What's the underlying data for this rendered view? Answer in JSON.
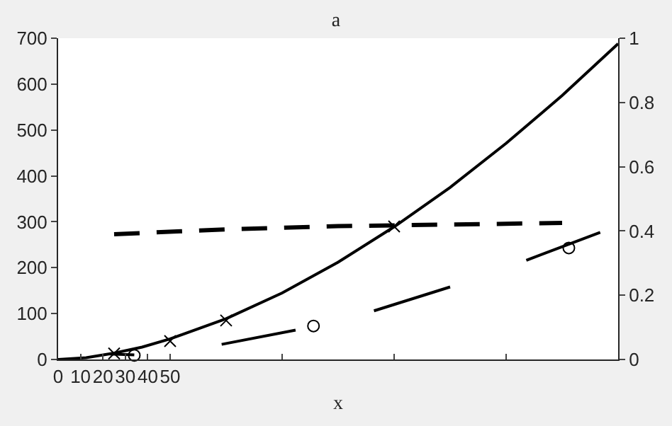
{
  "chart_data": {
    "type": "line",
    "title": "a",
    "xlabel": "x",
    "xlim": [
      0,
      250
    ],
    "xticks": [
      0,
      10,
      20,
      30,
      40,
      50,
      {
        "value": 100,
        "label": null
      },
      {
        "value": 150,
        "label": null
      },
      {
        "value": 200,
        "label": null
      }
    ],
    "ylim": [
      0,
      700
    ],
    "yticks": [
      0,
      100,
      200,
      300,
      400,
      500,
      600,
      700
    ],
    "y2lim": [
      0,
      1
    ],
    "y2ticks": [
      0,
      0.2,
      0.4,
      0.6,
      0.8,
      1
    ],
    "series": [
      {
        "color": "#000000",
        "line_style": "solid",
        "marker": "none",
        "x": [
          0,
          12.5,
          25,
          37.5,
          50,
          75,
          100,
          125,
          150,
          175,
          200,
          225,
          250
        ],
        "values": [
          0,
          4,
          14,
          27,
          45,
          89,
          145,
          212,
          289,
          375,
          471,
          575,
          688
        ]
      },
      {
        "type": "scatter",
        "color": "#000000",
        "marker": "cross",
        "x": [
          25,
          50,
          75,
          150
        ],
        "values": [
          13,
          40,
          85,
          290
        ]
      },
      {
        "color": "#000000",
        "line_style": "dashed",
        "marker": "none",
        "axis": "y2",
        "x": [
          25,
          75,
          125,
          175,
          225
        ],
        "values": [
          0.39,
          0.405,
          0.415,
          0.42,
          0.425
        ]
      },
      {
        "color": "#000000",
        "line_style": "solid",
        "marker": "none",
        "x": [
          23,
          34,
          35,
          73,
          106,
          107,
          141,
          175,
          176,
          209,
          242
        ],
        "values": [
          12,
          10,
          null,
          33,
          64,
          null,
          106,
          158,
          null,
          216,
          277
        ]
      },
      {
        "type": "scatter",
        "color": "#000000",
        "marker": "circle",
        "x": [
          34,
          114,
          228
        ],
        "values": [
          9,
          73,
          243
        ]
      }
    ]
  }
}
